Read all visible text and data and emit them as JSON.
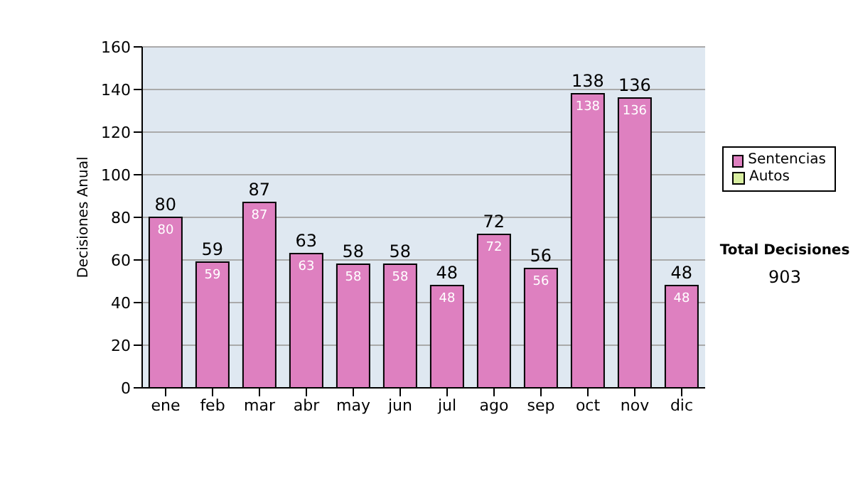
{
  "chart_data": {
    "type": "bar",
    "ylabel": "Decisiones Anual",
    "categories": [
      "ene",
      "feb",
      "mar",
      "abr",
      "may",
      "jun",
      "jul",
      "ago",
      "sep",
      "oct",
      "nov",
      "dic"
    ],
    "series": [
      {
        "name": "Sentencias",
        "color": "#de80c0",
        "values": [
          80,
          59,
          87,
          63,
          58,
          58,
          48,
          72,
          56,
          138,
          136,
          48
        ],
        "value_labels": [
          "80",
          "59",
          "87",
          "63",
          "58",
          "58",
          "48",
          "72",
          "56",
          "138",
          "136",
          "48"
        ]
      },
      {
        "name": "Autos",
        "color": "#d8eea0",
        "values": [
          0,
          0,
          0,
          0,
          0,
          0,
          0,
          0,
          0,
          0,
          0,
          0
        ]
      }
    ],
    "stacked": true,
    "totals": [
      "80",
      "59",
      "87",
      "63",
      "58",
      "58",
      "48",
      "72",
      "56",
      "138",
      "136",
      "48"
    ],
    "ylim": [
      0,
      160
    ],
    "yticks": [
      0,
      20,
      40,
      60,
      80,
      100,
      120,
      140,
      160
    ],
    "grid": "y",
    "legend": "right",
    "annotations": [
      "Total Decisiones",
      "903"
    ]
  }
}
